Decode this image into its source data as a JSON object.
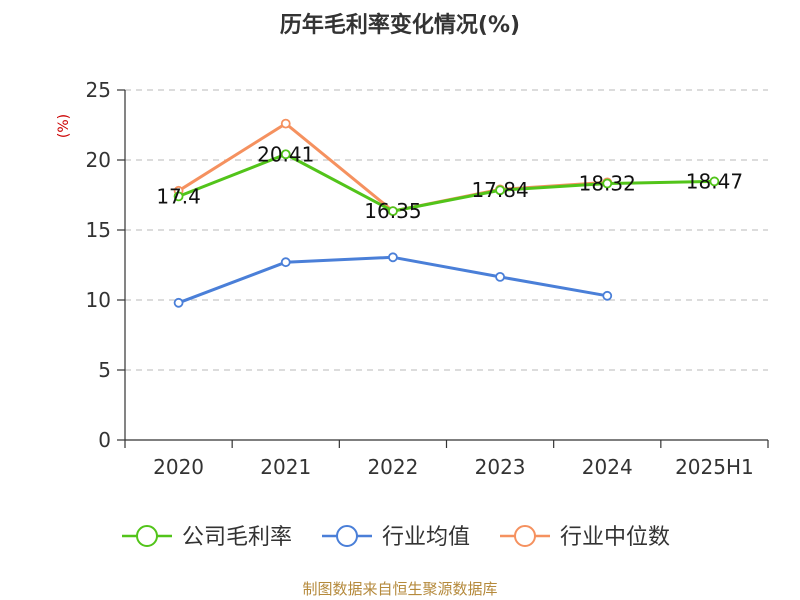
{
  "chart_data": {
    "type": "line",
    "title": "历年毛利率变化情况(%)",
    "ylabel": "(%)",
    "xlabel": "",
    "ylim": [
      0,
      25
    ],
    "yticks": [
      0,
      5,
      10,
      15,
      20,
      25
    ],
    "categories": [
      "2020",
      "2021",
      "2022",
      "2023",
      "2024",
      "2025H1"
    ],
    "grid": true,
    "legend_position": "bottom",
    "series": [
      {
        "name": "公司毛利率",
        "color": "#52c41a",
        "values": [
          17.4,
          20.41,
          16.35,
          17.84,
          18.32,
          18.47
        ],
        "labels": [
          "17.4",
          "20.41",
          "16.35",
          "17.84",
          "18.32",
          "18.47"
        ]
      },
      {
        "name": "行业均值",
        "color": "#4a7fd8",
        "values": [
          9.8,
          12.7,
          13.05,
          11.65,
          10.3,
          null
        ],
        "labels": []
      },
      {
        "name": "行业中位数",
        "color": "#f5915f",
        "values": [
          17.8,
          22.6,
          16.35,
          17.9,
          18.4,
          null
        ],
        "labels": []
      }
    ]
  },
  "source": "制图数据来自恒生聚源数据库"
}
